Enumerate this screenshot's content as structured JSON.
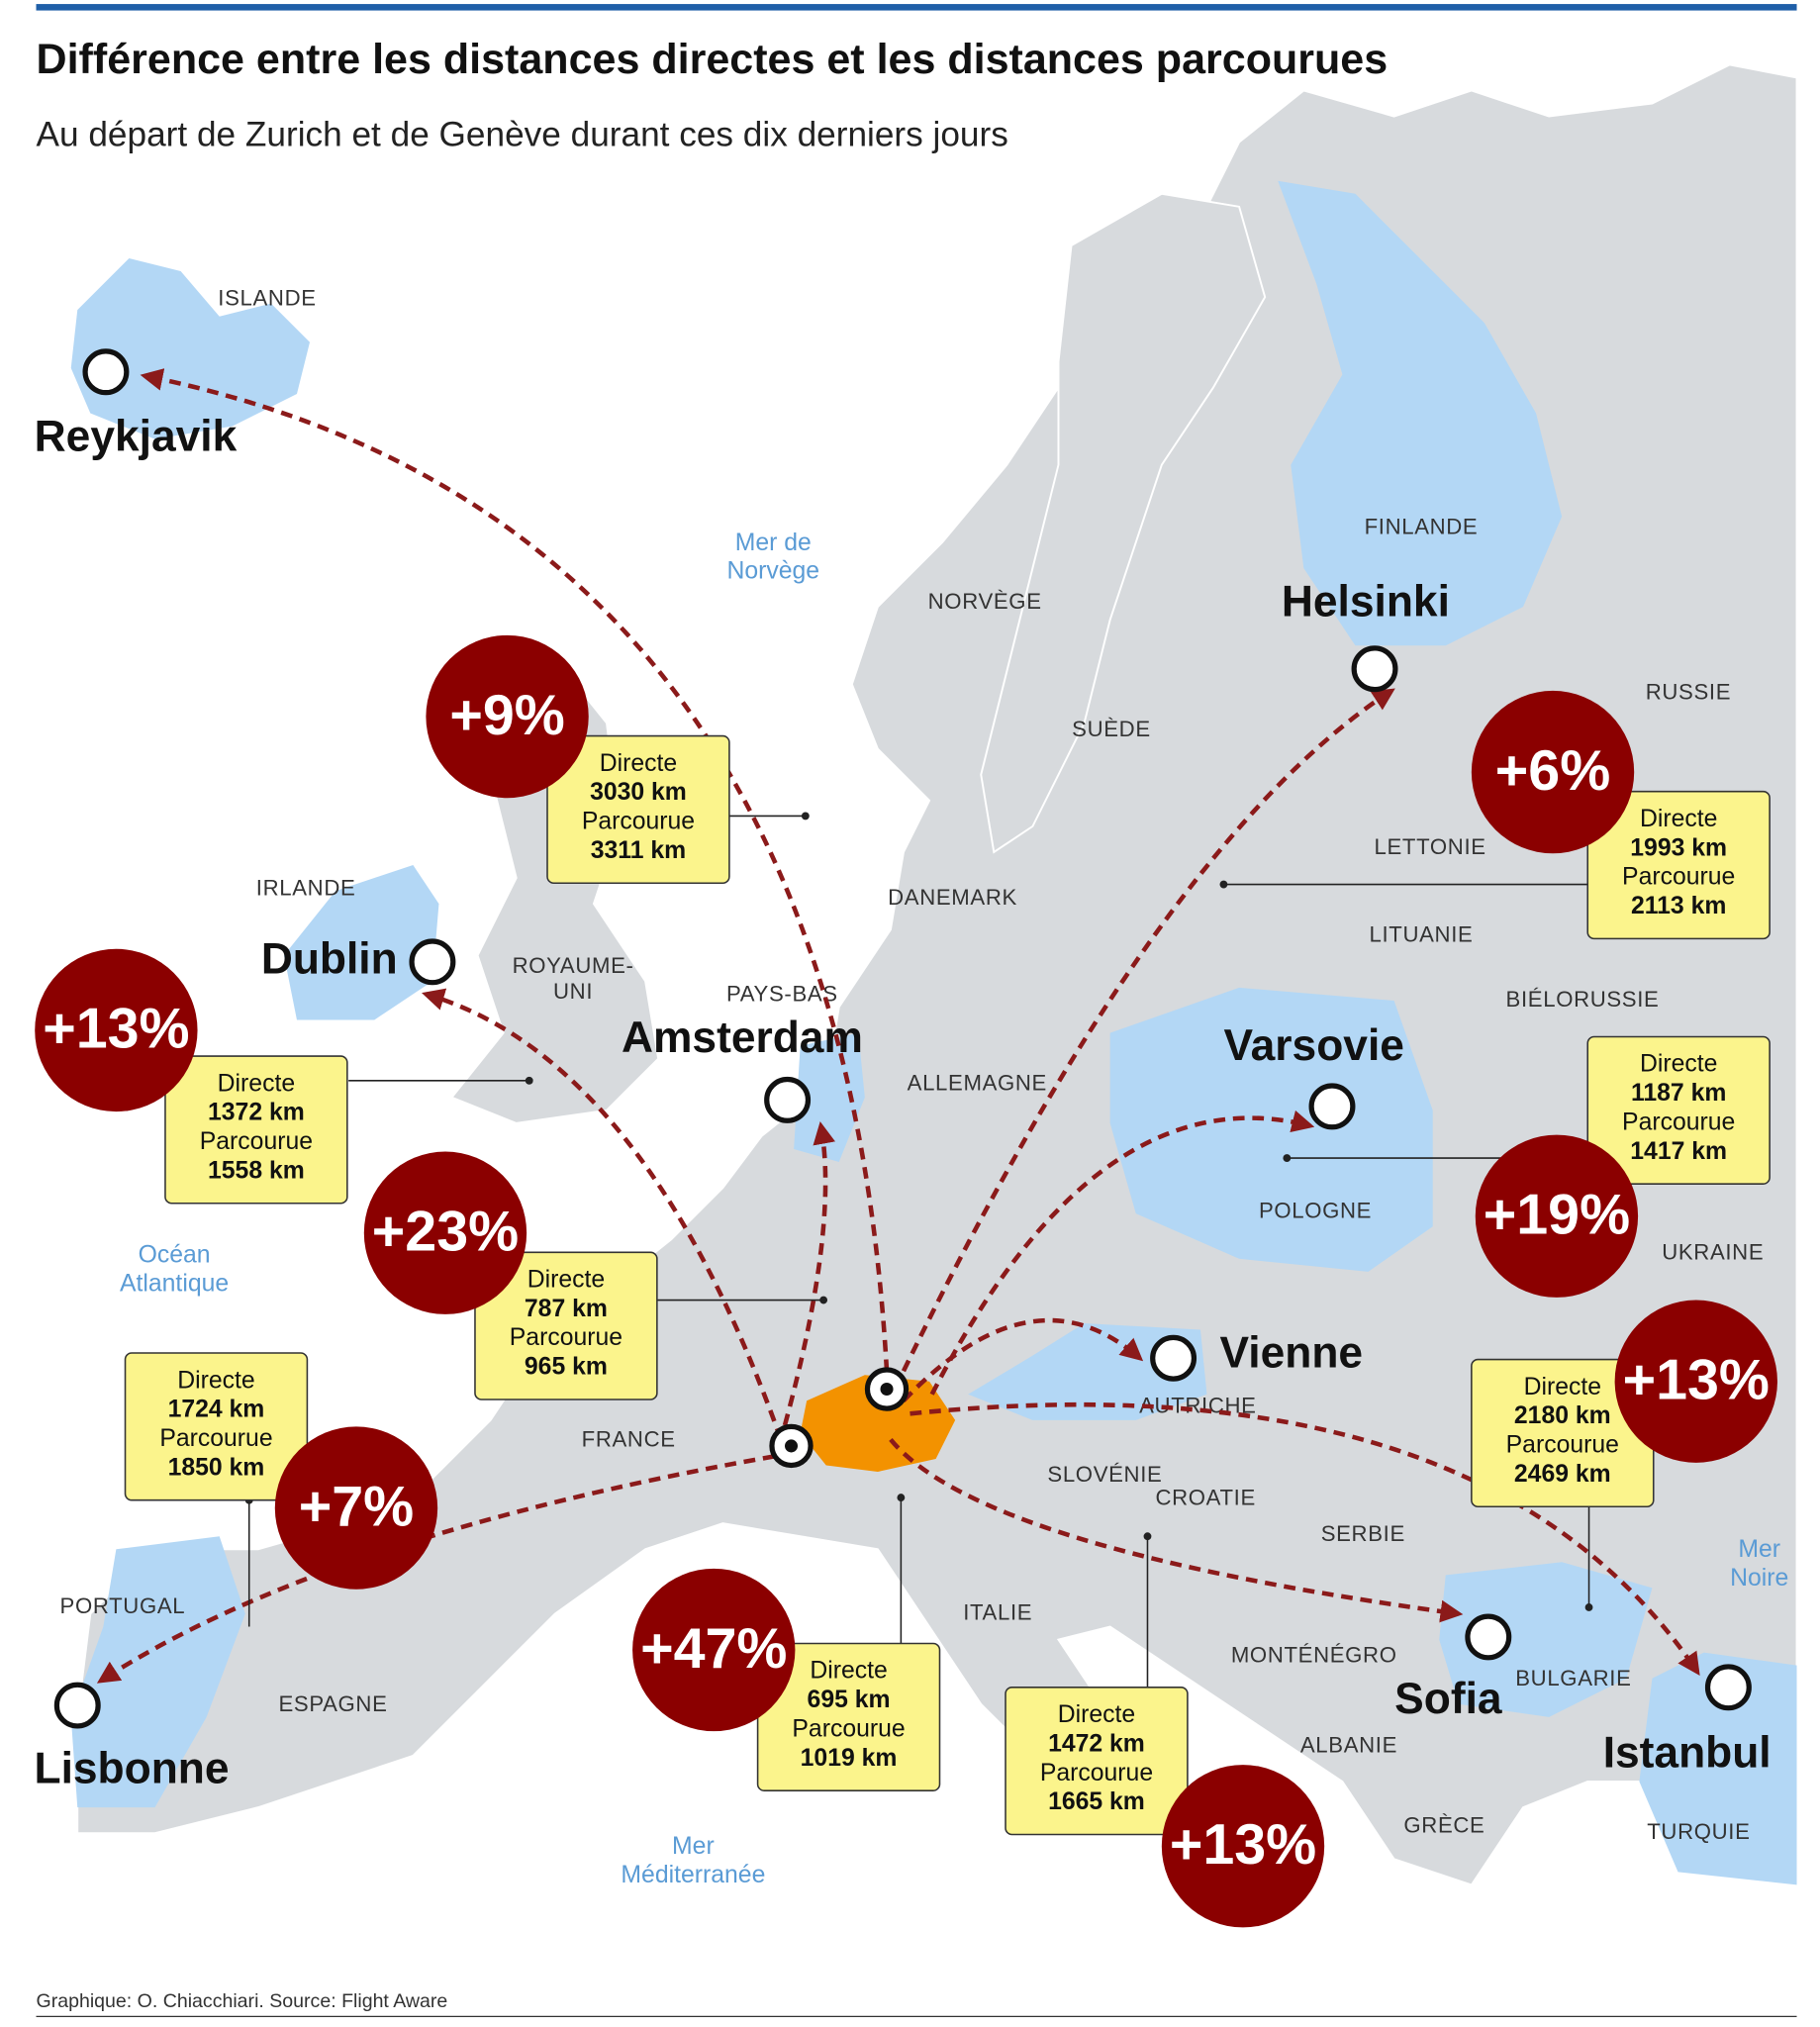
{
  "header": {
    "title": "Différence entre les distances directes et les distances parcourues",
    "subtitle": "Au départ de Zurich et de Genève durant ces dix derniers jours"
  },
  "map": {
    "country_labels": [
      [
        "ISLANDE"
      ],
      [
        "NORVÈGE"
      ],
      [
        "SUÈDE"
      ],
      [
        "FINLANDE"
      ],
      [
        "RUSSIE"
      ],
      [
        "LETTONIE"
      ],
      [
        "LITUANIE"
      ],
      [
        "BIÉLORUSSIE"
      ],
      [
        "DANEMARK"
      ],
      [
        "IRLANDE"
      ],
      [
        "ROYAUME-",
        "UNI"
      ],
      [
        "PAYS-BAS"
      ],
      [
        "ALLEMAGNE"
      ],
      [
        "POLOGNE"
      ],
      [
        "UKRAINE"
      ],
      [
        "AUTRICHE"
      ],
      [
        "FRANCE"
      ],
      [
        "SLOVÉNIE"
      ],
      [
        "CROATIE"
      ],
      [
        "SERBIE"
      ],
      [
        "ITALIE"
      ],
      [
        "MONTÉNÉGRO"
      ],
      [
        "ALBANIE"
      ],
      [
        "GRÈCE"
      ],
      [
        "BULGARIE"
      ],
      [
        "TURQUIE"
      ],
      [
        "PORTUGAL"
      ],
      [
        "ESPAGNE"
      ]
    ],
    "sea_labels": [
      [
        "Mer de",
        "Norvège"
      ],
      [
        "Océan",
        "Atlantique"
      ],
      [
        "Mer",
        "Méditerranée"
      ],
      [
        "Mer",
        "Noire"
      ]
    ]
  },
  "cities": [
    "Reykjavik",
    "Helsinki",
    "Dublin",
    "Varsovie",
    "Amsterdam",
    "Istanbul",
    "Lisbonne",
    "Vienne",
    "Sofia"
  ],
  "routes": [
    {
      "change": "+9%",
      "directe_label": "Directe",
      "directe": "3030 km",
      "parcourue_label": "Parcourue",
      "parcourue": "3311 km"
    },
    {
      "change": "+6%",
      "directe_label": "Directe",
      "directe": "1993 km",
      "parcourue_label": "Parcourue",
      "parcourue": "2113 km"
    },
    {
      "change": "+13%",
      "directe_label": "Directe",
      "directe": "1372 km",
      "parcourue_label": "Parcourue",
      "parcourue": "1558 km"
    },
    {
      "change": "+19%",
      "directe_label": "Directe",
      "directe": "1187 km",
      "parcourue_label": "Parcourue",
      "parcourue": "1417 km"
    },
    {
      "change": "+23%",
      "directe_label": "Directe",
      "directe": "787 km",
      "parcourue_label": "Parcourue",
      "parcourue": "965 km"
    },
    {
      "change": "+13%",
      "directe_label": "Directe",
      "directe": "2180 km",
      "parcourue_label": "Parcourue",
      "parcourue": "2469 km"
    },
    {
      "change": "+7%",
      "directe_label": "Directe",
      "directe": "1724 km",
      "parcourue_label": "Parcourue",
      "parcourue": "1850 km"
    },
    {
      "change": "+47%",
      "directe_label": "Directe",
      "directe": "695 km",
      "parcourue_label": "Parcourue",
      "parcourue": "1019 km"
    },
    {
      "change": "+13%",
      "directe_label": "Directe",
      "directe": "1472 km",
      "parcourue_label": "Parcourue",
      "parcourue": "1665 km"
    }
  ],
  "source": "Graphique: O. Chiacchiari. Source:  Flight Aware"
}
